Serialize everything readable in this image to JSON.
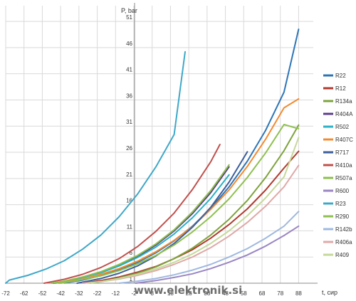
{
  "chart_data": {
    "type": "line",
    "xlabel": "t, сир",
    "ylabel": "P, bar",
    "xlim": [
      -72,
      96
    ],
    "ylim": [
      1,
      54
    ],
    "x_ticks": [
      "-72",
      "-62",
      "-52",
      "-42",
      "-32",
      "-22",
      "-12",
      "-2",
      "8",
      "18",
      "28",
      "38",
      "48",
      "58",
      "68",
      "78",
      "88"
    ],
    "y_ticks": [
      "1",
      "6",
      "11",
      "16",
      "21",
      "26",
      "31",
      "36",
      "41",
      "46",
      "51"
    ],
    "grid": true,
    "legend_position": "right",
    "watermark": "www.elektronik.si",
    "series": [
      {
        "name": "R22",
        "color": "#2e75b6",
        "x": [
          -40,
          -30,
          -20,
          -10,
          0,
          10,
          20,
          30,
          40,
          50,
          60,
          70,
          80,
          88
        ],
        "y": [
          1.05,
          1.6,
          2.45,
          3.55,
          4.98,
          6.8,
          9.1,
          11.9,
          15.3,
          19.4,
          24.3,
          30.2,
          37.5,
          49.5
        ]
      },
      {
        "name": "R12",
        "color": "#b03a2e",
        "x": [
          -30,
          -20,
          -10,
          0,
          10,
          20,
          30,
          40,
          50,
          60,
          70,
          80,
          88
        ],
        "y": [
          1.0,
          1.5,
          2.2,
          3.1,
          4.2,
          5.7,
          7.4,
          9.6,
          12.2,
          15.2,
          18.8,
          23.0,
          26.2
        ]
      },
      {
        "name": "R134a",
        "color": "#7ea33c",
        "x": [
          -26,
          -20,
          -10,
          0,
          10,
          20,
          30,
          40,
          50,
          60,
          70,
          80,
          88
        ],
        "y": [
          1.0,
          1.3,
          2.0,
          2.9,
          4.1,
          5.7,
          7.7,
          10.2,
          13.2,
          16.8,
          21.2,
          26.3,
          31.2
        ]
      },
      {
        "name": "R404A",
        "color": "#5b3d8a",
        "x": [
          -46,
          -40,
          -30,
          -20,
          -10,
          0,
          10,
          20,
          30,
          40,
          50
        ],
        "y": [
          1.0,
          1.3,
          2.1,
          3.1,
          4.4,
          6.1,
          8.3,
          11.0,
          14.3,
          18.3,
          23.2
        ]
      },
      {
        "name": "R502",
        "color": "#2ab0c7",
        "x": [
          -45,
          -40,
          -30,
          -20,
          -10,
          0,
          10,
          20,
          30,
          40,
          50
        ],
        "y": [
          1.0,
          1.3,
          2.1,
          3.0,
          4.3,
          5.9,
          7.9,
          10.4,
          13.5,
          17.2,
          21.7
        ]
      },
      {
        "name": "R407C",
        "color": "#f28b30",
        "x": [
          -43,
          -40,
          -30,
          -20,
          -10,
          0,
          10,
          20,
          30,
          40,
          50,
          60,
          70,
          80,
          88
        ],
        "y": [
          1.0,
          1.2,
          1.8,
          2.7,
          3.8,
          5.2,
          7.0,
          9.2,
          11.8,
          15.1,
          18.8,
          23.3,
          28.5,
          34.5,
          36.2
        ]
      },
      {
        "name": "R717",
        "color": "#3d5f9c",
        "x": [
          -33,
          -30,
          -20,
          -10,
          0,
          10,
          20,
          30,
          40,
          50,
          60
        ],
        "y": [
          1.0,
          1.2,
          1.9,
          2.9,
          4.3,
          6.2,
          8.6,
          11.7,
          15.5,
          20.3,
          26.1
        ]
      },
      {
        "name": "R410a",
        "color": "#c0504d",
        "x": [
          -51,
          -40,
          -30,
          -20,
          -10,
          0,
          10,
          20,
          30,
          40,
          45
        ],
        "y": [
          1.0,
          1.75,
          2.7,
          4.0,
          5.7,
          7.98,
          10.9,
          14.4,
          18.9,
          24.2,
          27.5
        ]
      },
      {
        "name": "R507a",
        "color": "#8cbf4b",
        "x": [
          -47,
          -40,
          -30,
          -20,
          -10,
          0,
          10,
          20,
          30,
          40,
          50
        ],
        "y": [
          1.0,
          1.4,
          2.2,
          3.2,
          4.6,
          6.3,
          8.5,
          11.2,
          14.6,
          18.7,
          23.6
        ]
      },
      {
        "name": "R600",
        "color": "#9a86c4",
        "x": [
          -1,
          10,
          20,
          30,
          40,
          50,
          60,
          70,
          80,
          88
        ],
        "y": [
          1.0,
          1.5,
          2.1,
          2.8,
          3.8,
          5.0,
          6.4,
          8.1,
          10.1,
          11.9
        ]
      },
      {
        "name": "R23",
        "color": "#3fa8c9",
        "x": [
          -82,
          -70,
          -60,
          -50,
          -40,
          -30,
          -20,
          -10,
          0,
          10,
          20,
          26
        ],
        "y": [
          1.0,
          1.6,
          2.5,
          3.7,
          5.3,
          7.5,
          10.2,
          13.7,
          18.0,
          23.2,
          29.4,
          45.2
        ]
      },
      {
        "name": "R290",
        "color": "#8fc04f",
        "x": [
          -42,
          -30,
          -20,
          -10,
          0,
          10,
          20,
          30,
          40,
          50,
          60,
          70,
          80,
          88
        ],
        "y": [
          1.0,
          1.7,
          2.4,
          3.4,
          4.7,
          6.3,
          8.3,
          10.8,
          13.7,
          17.1,
          21.2,
          25.9,
          31.3,
          30.5
        ]
      },
      {
        "name": "R142b",
        "color": "#9fb8e0",
        "x": [
          -10,
          0,
          10,
          20,
          30,
          40,
          50,
          60,
          70,
          80,
          88
        ],
        "y": [
          1.0,
          1.4,
          1.9,
          2.6,
          3.5,
          4.6,
          6.0,
          7.6,
          9.6,
          11.9,
          14.7
        ]
      },
      {
        "name": "R406a",
        "color": "#e0a8a8",
        "x": [
          -30,
          -20,
          -10,
          0,
          10,
          20,
          30,
          40,
          50,
          60,
          70,
          80,
          88
        ],
        "y": [
          1.0,
          1.3,
          1.8,
          2.5,
          3.4,
          4.6,
          6.0,
          7.8,
          10.0,
          12.6,
          15.7,
          19.4,
          23.5
        ]
      },
      {
        "name": "R409",
        "color": "#c5d99a",
        "x": [
          -27,
          -20,
          -10,
          0,
          10,
          20,
          30,
          40,
          50,
          60,
          70,
          80,
          88
        ],
        "y": [
          1.0,
          1.3,
          1.9,
          2.7,
          3.7,
          5.0,
          6.6,
          8.6,
          11.0,
          13.9,
          17.3,
          21.3,
          28.8
        ]
      }
    ]
  }
}
